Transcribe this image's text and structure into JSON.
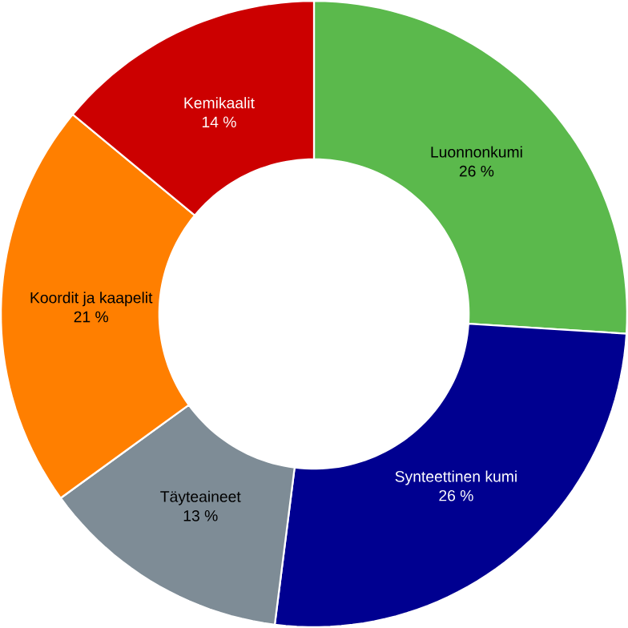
{
  "chart_data": {
    "type": "donut",
    "categories": [
      "Luonnonkumi",
      "Synteettinen kumi",
      "Täyteaineet",
      "Koordit ja kaapelit",
      "Kemikaalit"
    ],
    "values": [
      26,
      26,
      13,
      21,
      14
    ],
    "value_labels": [
      "26 %",
      "26 %",
      "13 %",
      "21 %",
      "14 %"
    ],
    "colors": [
      "#5bb94c",
      "#000090",
      "#7e8c96",
      "#ff7f00",
      "#cc0000"
    ]
  }
}
